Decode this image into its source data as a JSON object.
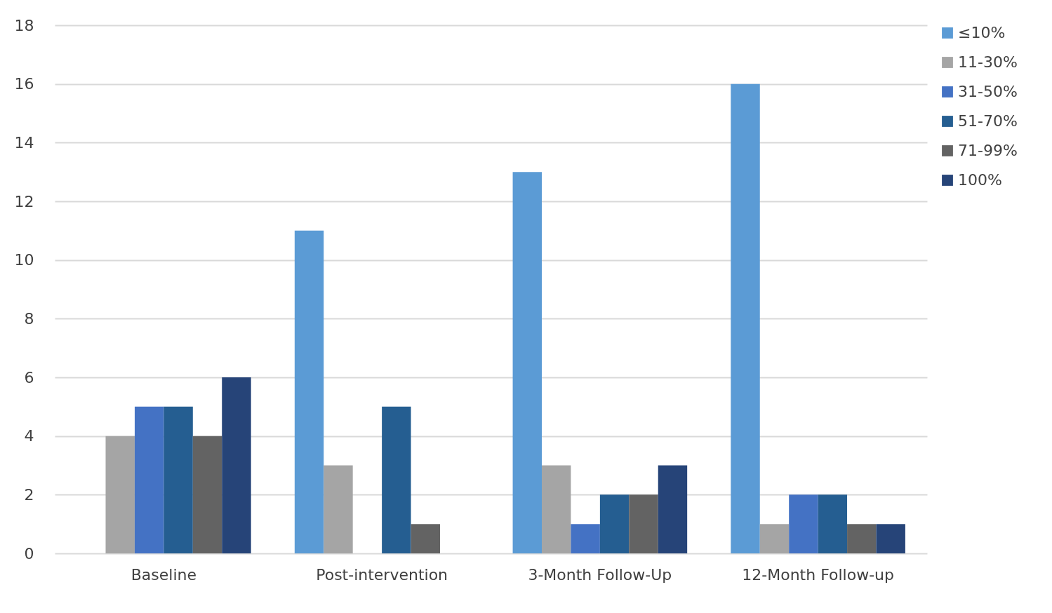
{
  "chart_data": {
    "type": "bar",
    "categories": [
      "Baseline",
      "Post-intervention",
      "3-Month Follow-Up",
      "12-Month Follow-up"
    ],
    "series": [
      {
        "name": "≤10%",
        "color": "#5b9bd5",
        "values": [
          0,
          11,
          13,
          16
        ]
      },
      {
        "name": "11-30%",
        "color": "#a5a5a5",
        "values": [
          4,
          3,
          3,
          1
        ]
      },
      {
        "name": "31-50%",
        "color": "#4472c4",
        "values": [
          5,
          0,
          1,
          2
        ]
      },
      {
        "name": "51-70%",
        "color": "#255e91",
        "values": [
          5,
          5,
          2,
          2
        ]
      },
      {
        "name": "71-99%",
        "color": "#636363",
        "values": [
          4,
          1,
          2,
          1
        ]
      },
      {
        "name": "100%",
        "color": "#264478",
        "values": [
          6,
          0,
          3,
          1
        ]
      }
    ],
    "ylim": [
      0,
      18
    ],
    "yticks": [
      0,
      2,
      4,
      6,
      8,
      10,
      12,
      14,
      16,
      18
    ],
    "grid": "y",
    "legend": "right"
  }
}
